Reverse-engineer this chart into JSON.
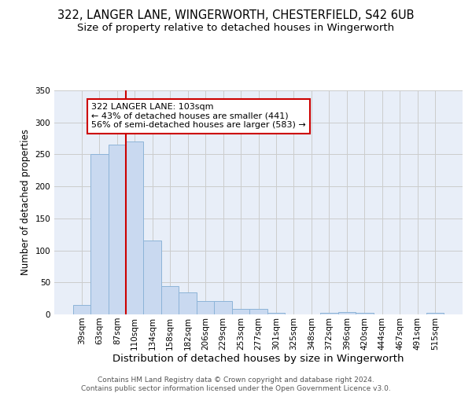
{
  "title_line1": "322, LANGER LANE, WINGERWORTH, CHESTERFIELD, S42 6UB",
  "title_line2": "Size of property relative to detached houses in Wingerworth",
  "xlabel": "Distribution of detached houses by size in Wingerworth",
  "ylabel": "Number of detached properties",
  "categories": [
    "39sqm",
    "63sqm",
    "87sqm",
    "110sqm",
    "134sqm",
    "158sqm",
    "182sqm",
    "206sqm",
    "229sqm",
    "253sqm",
    "277sqm",
    "301sqm",
    "325sqm",
    "348sqm",
    "372sqm",
    "396sqm",
    "420sqm",
    "444sqm",
    "467sqm",
    "491sqm",
    "515sqm"
  ],
  "values": [
    15,
    250,
    265,
    270,
    115,
    44,
    35,
    21,
    21,
    8,
    8,
    2,
    0,
    0,
    3,
    4,
    3,
    0,
    0,
    0,
    2
  ],
  "bar_color": "#c9d9f0",
  "bar_edge_color": "#8db4d8",
  "vline_x_index": 3,
  "vline_color": "#cc0000",
  "annotation_text": "322 LANGER LANE: 103sqm\n← 43% of detached houses are smaller (441)\n56% of semi-detached houses are larger (583) →",
  "annotation_box_color": "#ffffff",
  "annotation_box_edge": "#cc0000",
  "ylim": [
    0,
    350
  ],
  "yticks": [
    0,
    50,
    100,
    150,
    200,
    250,
    300,
    350
  ],
  "grid_color": "#cccccc",
  "bg_color": "#e8eef8",
  "footer_line1": "Contains HM Land Registry data © Crown copyright and database right 2024.",
  "footer_line2": "Contains public sector information licensed under the Open Government Licence v3.0.",
  "title_fontsize": 10.5,
  "subtitle_fontsize": 9.5,
  "tick_fontsize": 7.5,
  "ylabel_fontsize": 8.5,
  "xlabel_fontsize": 9.5,
  "annotation_fontsize": 8,
  "footer_fontsize": 6.5
}
